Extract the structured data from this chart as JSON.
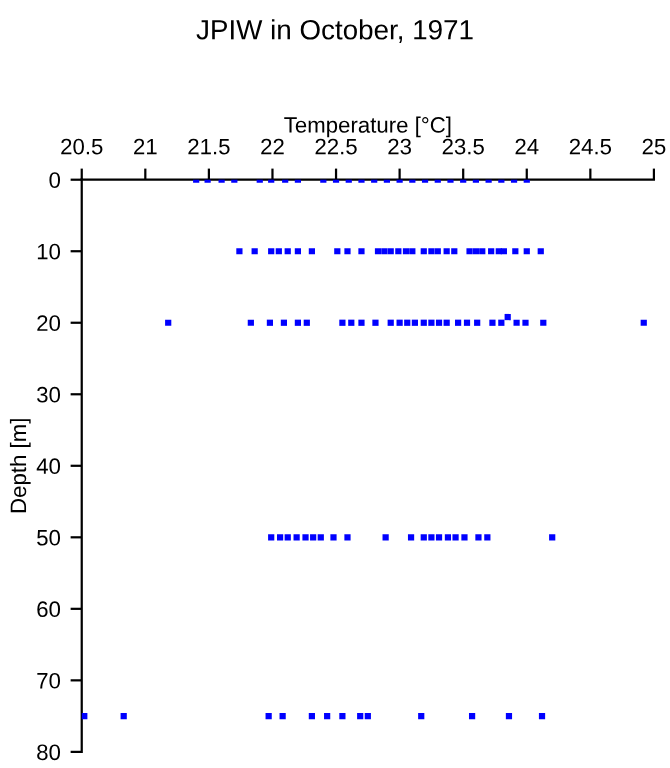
{
  "chart_data": {
    "type": "scatter",
    "title": "JPIW in October, 1971",
    "xlabel": "Temperature [°C]",
    "ylabel": "Depth [m]",
    "xlim": [
      20.5,
      25
    ],
    "xticks": [
      20.5,
      21,
      21.5,
      22,
      22.5,
      23,
      23.5,
      24,
      24.5,
      25
    ],
    "ylim": [
      80,
      0
    ],
    "yticks": [
      0,
      10,
      20,
      30,
      40,
      50,
      60,
      70,
      80
    ],
    "grid": false,
    "marker": "square",
    "series": [
      {
        "color": "#0000ff",
        "x": [
          21.4,
          21.49,
          21.6,
          21.7,
          21.9,
          21.99,
          22.1,
          22.2,
          22.4,
          22.5,
          22.6,
          22.7,
          22.8,
          22.9,
          23.0,
          23.1,
          23.2,
          23.3,
          23.4,
          23.5,
          23.6,
          23.7,
          23.8,
          23.9,
          24.0,
          21.74,
          21.86,
          21.99,
          22.05,
          22.12,
          22.2,
          22.31,
          22.51,
          22.59,
          22.7,
          22.83,
          22.88,
          22.93,
          22.99,
          23.05,
          23.1,
          23.19,
          23.25,
          23.3,
          23.37,
          23.43,
          23.55,
          23.6,
          23.65,
          23.72,
          23.78,
          23.82,
          23.91,
          24.0,
          24.11,
          21.18,
          21.83,
          21.98,
          22.09,
          22.2,
          22.27,
          22.55,
          22.62,
          22.7,
          22.81,
          22.93,
          23.0,
          23.06,
          23.12,
          23.19,
          23.25,
          23.31,
          23.37,
          23.46,
          23.53,
          23.61,
          23.73,
          23.8,
          23.85,
          23.92,
          23.99,
          24.13,
          24.92,
          21.99,
          22.06,
          22.12,
          22.19,
          22.26,
          22.32,
          22.38,
          22.48,
          22.59,
          22.89,
          23.09,
          23.19,
          23.25,
          23.31,
          23.38,
          23.44,
          23.51,
          23.62,
          23.69,
          24.2,
          20.52,
          20.83,
          21.97,
          22.08,
          22.31,
          22.43,
          22.55,
          22.69,
          22.75,
          23.17,
          23.57,
          23.86,
          24.12
        ],
        "values": [
          0,
          0,
          0,
          0,
          0,
          0,
          0,
          0,
          0,
          0,
          0,
          0,
          0,
          0,
          0,
          0,
          0,
          0,
          0,
          0,
          0,
          0,
          0,
          0,
          0,
          10,
          10,
          10,
          10,
          10,
          10,
          10,
          10,
          10,
          10,
          10,
          10,
          10,
          10,
          10,
          10,
          10,
          10,
          10,
          10,
          10,
          10,
          10,
          10,
          10,
          10,
          10,
          10,
          10,
          10,
          20,
          20,
          20,
          20,
          20,
          20,
          20,
          20,
          20,
          20,
          20,
          20,
          20,
          20,
          20,
          20,
          20,
          20,
          20,
          20,
          20,
          20,
          20,
          19.2,
          20,
          20,
          20,
          20,
          50,
          50,
          50,
          50,
          50,
          50,
          50,
          50,
          50,
          50,
          50,
          50,
          50,
          50,
          50,
          50,
          50,
          50,
          50,
          50,
          75,
          75,
          75,
          75,
          75,
          75,
          75,
          75,
          75,
          75,
          75,
          75,
          75
        ]
      }
    ]
  }
}
